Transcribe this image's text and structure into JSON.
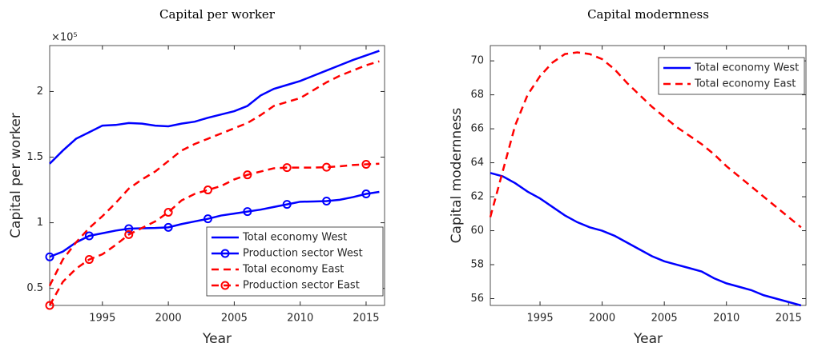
{
  "chart_data": [
    {
      "type": "line",
      "title": "Capital per worker",
      "x_label": "Year",
      "y_label": "Capital per worker",
      "y_multiplier": "×10⁵",
      "x": [
        1991,
        1992,
        1993,
        1994,
        1995,
        1996,
        1997,
        1998,
        1999,
        2000,
        2001,
        2002,
        2003,
        2004,
        2005,
        2006,
        2007,
        2008,
        2009,
        2010,
        2011,
        2012,
        2013,
        2014,
        2015,
        2016
      ],
      "xlim": [
        1991,
        2016.4
      ],
      "xticks": [
        1995,
        2000,
        2005,
        2010,
        2015
      ],
      "ylim": [
        0.37,
        2.35
      ],
      "yticks": [
        0.5,
        1,
        1.5,
        2
      ],
      "legend": "lower right",
      "series": [
        {
          "name": "Total economy West",
          "color": "#0000ff",
          "dash": false,
          "marker_step": 0,
          "values": [
            1.45,
            1.55,
            1.64,
            1.69,
            1.74,
            1.745,
            1.76,
            1.755,
            1.74,
            1.735,
            1.755,
            1.77,
            1.8,
            1.825,
            1.85,
            1.89,
            1.97,
            2.02,
            2.05,
            2.08,
            2.12,
            2.16,
            2.2,
            2.24,
            2.275,
            2.31
          ]
        },
        {
          "name": "Production sector West",
          "color": "#0000ff",
          "dash": false,
          "marker_step": 3,
          "values": [
            0.74,
            0.78,
            0.85,
            0.9,
            0.92,
            0.94,
            0.955,
            0.958,
            0.96,
            0.965,
            0.99,
            1.01,
            1.03,
            1.055,
            1.07,
            1.085,
            1.1,
            1.12,
            1.14,
            1.16,
            1.162,
            1.165,
            1.175,
            1.195,
            1.22,
            1.235
          ]
        },
        {
          "name": "Total economy East",
          "color": "#ff0000",
          "dash": true,
          "marker_step": 0,
          "values": [
            0.52,
            0.72,
            0.85,
            0.96,
            1.05,
            1.15,
            1.26,
            1.33,
            1.39,
            1.47,
            1.55,
            1.6,
            1.64,
            1.68,
            1.72,
            1.76,
            1.82,
            1.89,
            1.92,
            1.95,
            2.01,
            2.07,
            2.12,
            2.16,
            2.2,
            2.23
          ]
        },
        {
          "name": "Production sector East",
          "color": "#ff0000",
          "dash": true,
          "marker_step": 3,
          "values": [
            0.37,
            0.55,
            0.65,
            0.72,
            0.76,
            0.83,
            0.91,
            0.96,
            1.01,
            1.08,
            1.17,
            1.22,
            1.25,
            1.28,
            1.33,
            1.365,
            1.39,
            1.415,
            1.42,
            1.42,
            1.42,
            1.423,
            1.43,
            1.44,
            1.445,
            1.45
          ]
        }
      ]
    },
    {
      "type": "line",
      "title": "Capital modernness",
      "x_label": "Year",
      "y_label": "Capital modernness",
      "x": [
        1991,
        1992,
        1993,
        1994,
        1995,
        1996,
        1997,
        1998,
        1999,
        2000,
        2001,
        2002,
        2003,
        2004,
        2005,
        2006,
        2007,
        2008,
        2009,
        2010,
        2011,
        2012,
        2013,
        2014,
        2015,
        2016
      ],
      "xlim": [
        1991,
        2016.4
      ],
      "xticks": [
        1995,
        2000,
        2005,
        2010,
        2015
      ],
      "ylim": [
        55.6,
        70.9
      ],
      "yticks": [
        56,
        58,
        60,
        62,
        64,
        66,
        68,
        70
      ],
      "legend": "upper right",
      "series": [
        {
          "name": "Total economy West",
          "color": "#0000ff",
          "dash": false,
          "marker_step": 0,
          "values": [
            63.4,
            63.2,
            62.8,
            62.3,
            61.9,
            61.4,
            60.9,
            60.5,
            60.2,
            60.0,
            59.7,
            59.3,
            58.9,
            58.5,
            58.2,
            58.0,
            57.8,
            57.6,
            57.2,
            56.9,
            56.7,
            56.5,
            56.2,
            56.0,
            55.8,
            55.6
          ]
        },
        {
          "name": "Total economy East",
          "color": "#ff0000",
          "dash": true,
          "marker_step": 0,
          "values": [
            60.8,
            63.5,
            66.2,
            68.0,
            69.1,
            69.9,
            70.4,
            70.5,
            70.4,
            70.1,
            69.5,
            68.7,
            68.0,
            67.3,
            66.7,
            66.1,
            65.6,
            65.1,
            64.5,
            63.8,
            63.2,
            62.6,
            62.0,
            61.4,
            60.8,
            60.2
          ]
        }
      ]
    }
  ]
}
